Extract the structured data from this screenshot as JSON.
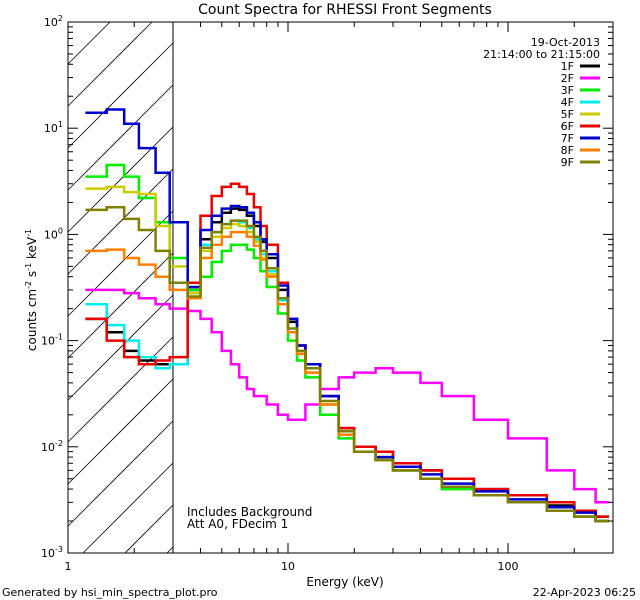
{
  "chart_data": {
    "type": "line",
    "title": "Count Spectra for RHESSI Front Segments",
    "xlabel": "Energy (keV)",
    "ylabel": "counts cm^-2 s^-1 keV^-1",
    "xscale": "log",
    "yscale": "log",
    "xlim": [
      1,
      300
    ],
    "ylim": [
      0.001,
      100
    ],
    "x_tick_labels": [
      {
        "value": 1,
        "label": "1"
      },
      {
        "value": 10,
        "label": "10"
      },
      {
        "value": 100,
        "label": "100"
      }
    ],
    "y_tick_labels": [
      {
        "value": 0.001,
        "base": "10",
        "exp": "-3"
      },
      {
        "value": 0.01,
        "base": "10",
        "exp": "-2"
      },
      {
        "value": 0.1,
        "base": "10",
        "exp": "-1"
      },
      {
        "value": 1,
        "base": "10",
        "exp": "0"
      },
      {
        "value": 10,
        "base": "10",
        "exp": "1"
      },
      {
        "value": 100,
        "base": "10",
        "exp": "2"
      }
    ],
    "date": "19-Oct-2013",
    "time_range": "21:14:00 to 21:15:00",
    "shaded_region_keV": [
      1,
      3
    ],
    "annotations": [
      "Includes Background",
      "Att A0, FDecim 1"
    ],
    "series": [
      {
        "name": "1F",
        "color": "#000000",
        "x": [
          1.2,
          1.5,
          1.8,
          2.1,
          2.5,
          2.9,
          3.5,
          4.0,
          4.5,
          5.0,
          5.5,
          6.0,
          6.5,
          7.0,
          7.5,
          8.0,
          9.0,
          10.0,
          11.0,
          12.0,
          14.0,
          17.0,
          20.0,
          25.0,
          30.0,
          40.0,
          50.0,
          70.0,
          100.0,
          150.0,
          200.0,
          250.0
        ],
        "values": [
          0.16,
          0.12,
          0.08,
          0.065,
          0.06,
          0.06,
          0.3,
          0.9,
          1.3,
          1.6,
          1.75,
          1.7,
          1.5,
          1.2,
          0.85,
          0.6,
          0.3,
          0.15,
          0.09,
          0.06,
          0.03,
          0.015,
          0.01,
          0.009,
          0.007,
          0.006,
          0.005,
          0.004,
          0.003,
          0.0028,
          0.0025,
          0.0022
        ]
      },
      {
        "name": "2F",
        "color": "#ff00ff",
        "x": [
          1.2,
          1.5,
          1.8,
          2.1,
          2.5,
          2.9,
          3.5,
          4.0,
          4.5,
          5.0,
          5.5,
          6.0,
          6.5,
          7.0,
          7.5,
          8.0,
          9.0,
          10.0,
          11.0,
          12.0,
          14.0,
          17.0,
          20.0,
          25.0,
          30.0,
          40.0,
          50.0,
          70.0,
          100.0,
          150.0,
          200.0,
          250.0
        ],
        "values": [
          0.3,
          0.3,
          0.28,
          0.25,
          0.22,
          0.2,
          0.19,
          0.16,
          0.12,
          0.08,
          0.06,
          0.045,
          0.035,
          0.03,
          0.03,
          0.025,
          0.02,
          0.018,
          0.018,
          0.025,
          0.035,
          0.045,
          0.05,
          0.055,
          0.05,
          0.04,
          0.03,
          0.018,
          0.012,
          0.006,
          0.004,
          0.003
        ]
      },
      {
        "name": "3F",
        "color": "#00ee00",
        "x": [
          1.2,
          1.5,
          1.8,
          2.1,
          2.5,
          2.9,
          3.5,
          4.0,
          4.5,
          5.0,
          5.5,
          6.0,
          6.5,
          7.0,
          7.5,
          8.0,
          9.0,
          10.0,
          11.0,
          12.0,
          14.0,
          17.0,
          20.0,
          25.0,
          30.0,
          40.0,
          50.0,
          70.0,
          100.0,
          150.0,
          200.0,
          250.0
        ],
        "values": [
          3.5,
          4.5,
          3.5,
          2.2,
          1.3,
          0.6,
          0.3,
          0.4,
          0.55,
          0.7,
          0.8,
          0.8,
          0.72,
          0.6,
          0.45,
          0.32,
          0.18,
          0.1,
          0.065,
          0.045,
          0.02,
          0.012,
          0.009,
          0.008,
          0.006,
          0.005,
          0.004,
          0.0035,
          0.003,
          0.0025,
          0.0022,
          0.002
        ]
      },
      {
        "name": "4F",
        "color": "#00eeee",
        "x": [
          1.2,
          1.5,
          1.8,
          2.1,
          2.5,
          2.9,
          3.5,
          4.0,
          4.5,
          5.0,
          5.5,
          6.0,
          6.5,
          7.0,
          7.5,
          8.0,
          9.0,
          10.0,
          11.0,
          12.0,
          14.0,
          17.0,
          20.0,
          25.0,
          30.0,
          40.0,
          50.0,
          70.0,
          100.0,
          150.0,
          200.0,
          250.0
        ],
        "values": [
          0.22,
          0.14,
          0.1,
          0.07,
          0.055,
          0.06,
          0.28,
          0.8,
          1.05,
          1.25,
          1.35,
          1.3,
          1.15,
          0.9,
          0.65,
          0.45,
          0.24,
          0.12,
          0.075,
          0.05,
          0.025,
          0.013,
          0.009,
          0.0075,
          0.006,
          0.005,
          0.0042,
          0.0035,
          0.003,
          0.0025,
          0.0022,
          0.002
        ]
      },
      {
        "name": "5F",
        "color": "#cccc00",
        "x": [
          1.2,
          1.5,
          1.8,
          2.1,
          2.5,
          2.9,
          3.5,
          4.0,
          4.5,
          5.0,
          5.5,
          6.0,
          6.5,
          7.0,
          7.5,
          8.0,
          9.0,
          10.0,
          11.0,
          12.0,
          14.0,
          17.0,
          20.0,
          25.0,
          30.0,
          40.0,
          50.0,
          70.0,
          100.0,
          150.0,
          200.0,
          250.0
        ],
        "values": [
          2.7,
          2.8,
          2.5,
          2.4,
          1.2,
          0.5,
          0.28,
          0.7,
          0.95,
          1.15,
          1.25,
          1.2,
          1.05,
          0.85,
          0.6,
          0.42,
          0.22,
          0.12,
          0.075,
          0.05,
          0.025,
          0.013,
          0.009,
          0.0075,
          0.006,
          0.005,
          0.0042,
          0.0035,
          0.003,
          0.0025,
          0.0022,
          0.002
        ]
      },
      {
        "name": "6F",
        "color": "#ee0000",
        "x": [
          1.2,
          1.5,
          1.8,
          2.1,
          2.5,
          2.9,
          3.5,
          4.0,
          4.5,
          5.0,
          5.5,
          6.0,
          6.5,
          7.0,
          7.5,
          8.0,
          9.0,
          10.0,
          11.0,
          12.0,
          14.0,
          17.0,
          20.0,
          25.0,
          30.0,
          40.0,
          50.0,
          70.0,
          100.0,
          150.0,
          200.0,
          250.0
        ],
        "values": [
          0.16,
          0.1,
          0.07,
          0.06,
          0.065,
          0.07,
          0.35,
          1.5,
          2.3,
          2.8,
          3.0,
          2.8,
          2.4,
          1.8,
          1.2,
          0.8,
          0.35,
          0.16,
          0.09,
          0.06,
          0.03,
          0.015,
          0.01,
          0.009,
          0.007,
          0.006,
          0.005,
          0.004,
          0.0035,
          0.003,
          0.0025,
          0.0022
        ]
      },
      {
        "name": "7F",
        "color": "#0000cc",
        "x": [
          1.2,
          1.5,
          1.8,
          2.1,
          2.5,
          2.9,
          3.5,
          4.0,
          4.5,
          5.0,
          5.5,
          6.0,
          6.5,
          7.0,
          7.5,
          8.0,
          9.0,
          10.0,
          11.0,
          12.0,
          14.0,
          17.0,
          20.0,
          25.0,
          30.0,
          40.0,
          50.0,
          70.0,
          100.0,
          150.0,
          200.0,
          250.0
        ],
        "values": [
          14.0,
          15.0,
          11.0,
          6.5,
          3.8,
          1.3,
          0.32,
          1.1,
          1.5,
          1.75,
          1.85,
          1.8,
          1.6,
          1.3,
          0.9,
          0.65,
          0.33,
          0.16,
          0.09,
          0.06,
          0.03,
          0.014,
          0.009,
          0.008,
          0.0065,
          0.0055,
          0.0045,
          0.0038,
          0.0032,
          0.0027,
          0.0024,
          0.002
        ]
      },
      {
        "name": "8F",
        "color": "#ff7f00",
        "x": [
          1.2,
          1.5,
          1.8,
          2.1,
          2.5,
          2.9,
          3.5,
          4.0,
          4.5,
          5.0,
          5.5,
          6.0,
          6.5,
          7.0,
          7.5,
          8.0,
          9.0,
          10.0,
          11.0,
          12.0,
          14.0,
          17.0,
          20.0,
          25.0,
          30.0,
          40.0,
          50.0,
          70.0,
          100.0,
          150.0,
          200.0,
          250.0
        ],
        "values": [
          0.7,
          0.72,
          0.6,
          0.52,
          0.4,
          0.3,
          0.25,
          0.6,
          0.8,
          0.95,
          1.05,
          1.05,
          0.95,
          0.78,
          0.58,
          0.4,
          0.22,
          0.12,
          0.075,
          0.05,
          0.025,
          0.013,
          0.009,
          0.0075,
          0.006,
          0.005,
          0.0042,
          0.0035,
          0.003,
          0.0025,
          0.0022,
          0.002
        ]
      },
      {
        "name": "9F",
        "color": "#808000",
        "x": [
          1.2,
          1.5,
          1.8,
          2.1,
          2.5,
          2.9,
          3.5,
          4.0,
          4.5,
          5.0,
          5.5,
          6.0,
          6.5,
          7.0,
          7.5,
          8.0,
          9.0,
          10.0,
          11.0,
          12.0,
          14.0,
          17.0,
          20.0,
          25.0,
          30.0,
          40.0,
          50.0,
          70.0,
          100.0,
          150.0,
          200.0,
          250.0
        ],
        "values": [
          1.7,
          1.8,
          1.4,
          1.1,
          0.7,
          0.35,
          0.26,
          0.75,
          1.05,
          1.25,
          1.35,
          1.35,
          1.2,
          0.95,
          0.7,
          0.48,
          0.25,
          0.13,
          0.08,
          0.055,
          0.027,
          0.014,
          0.009,
          0.0075,
          0.006,
          0.005,
          0.0042,
          0.0035,
          0.003,
          0.0025,
          0.0022,
          0.002
        ]
      }
    ]
  },
  "footer": {
    "left": "Generated by hsi_min_spectra_plot.pro",
    "right": "22-Apr-2023 06:25"
  }
}
